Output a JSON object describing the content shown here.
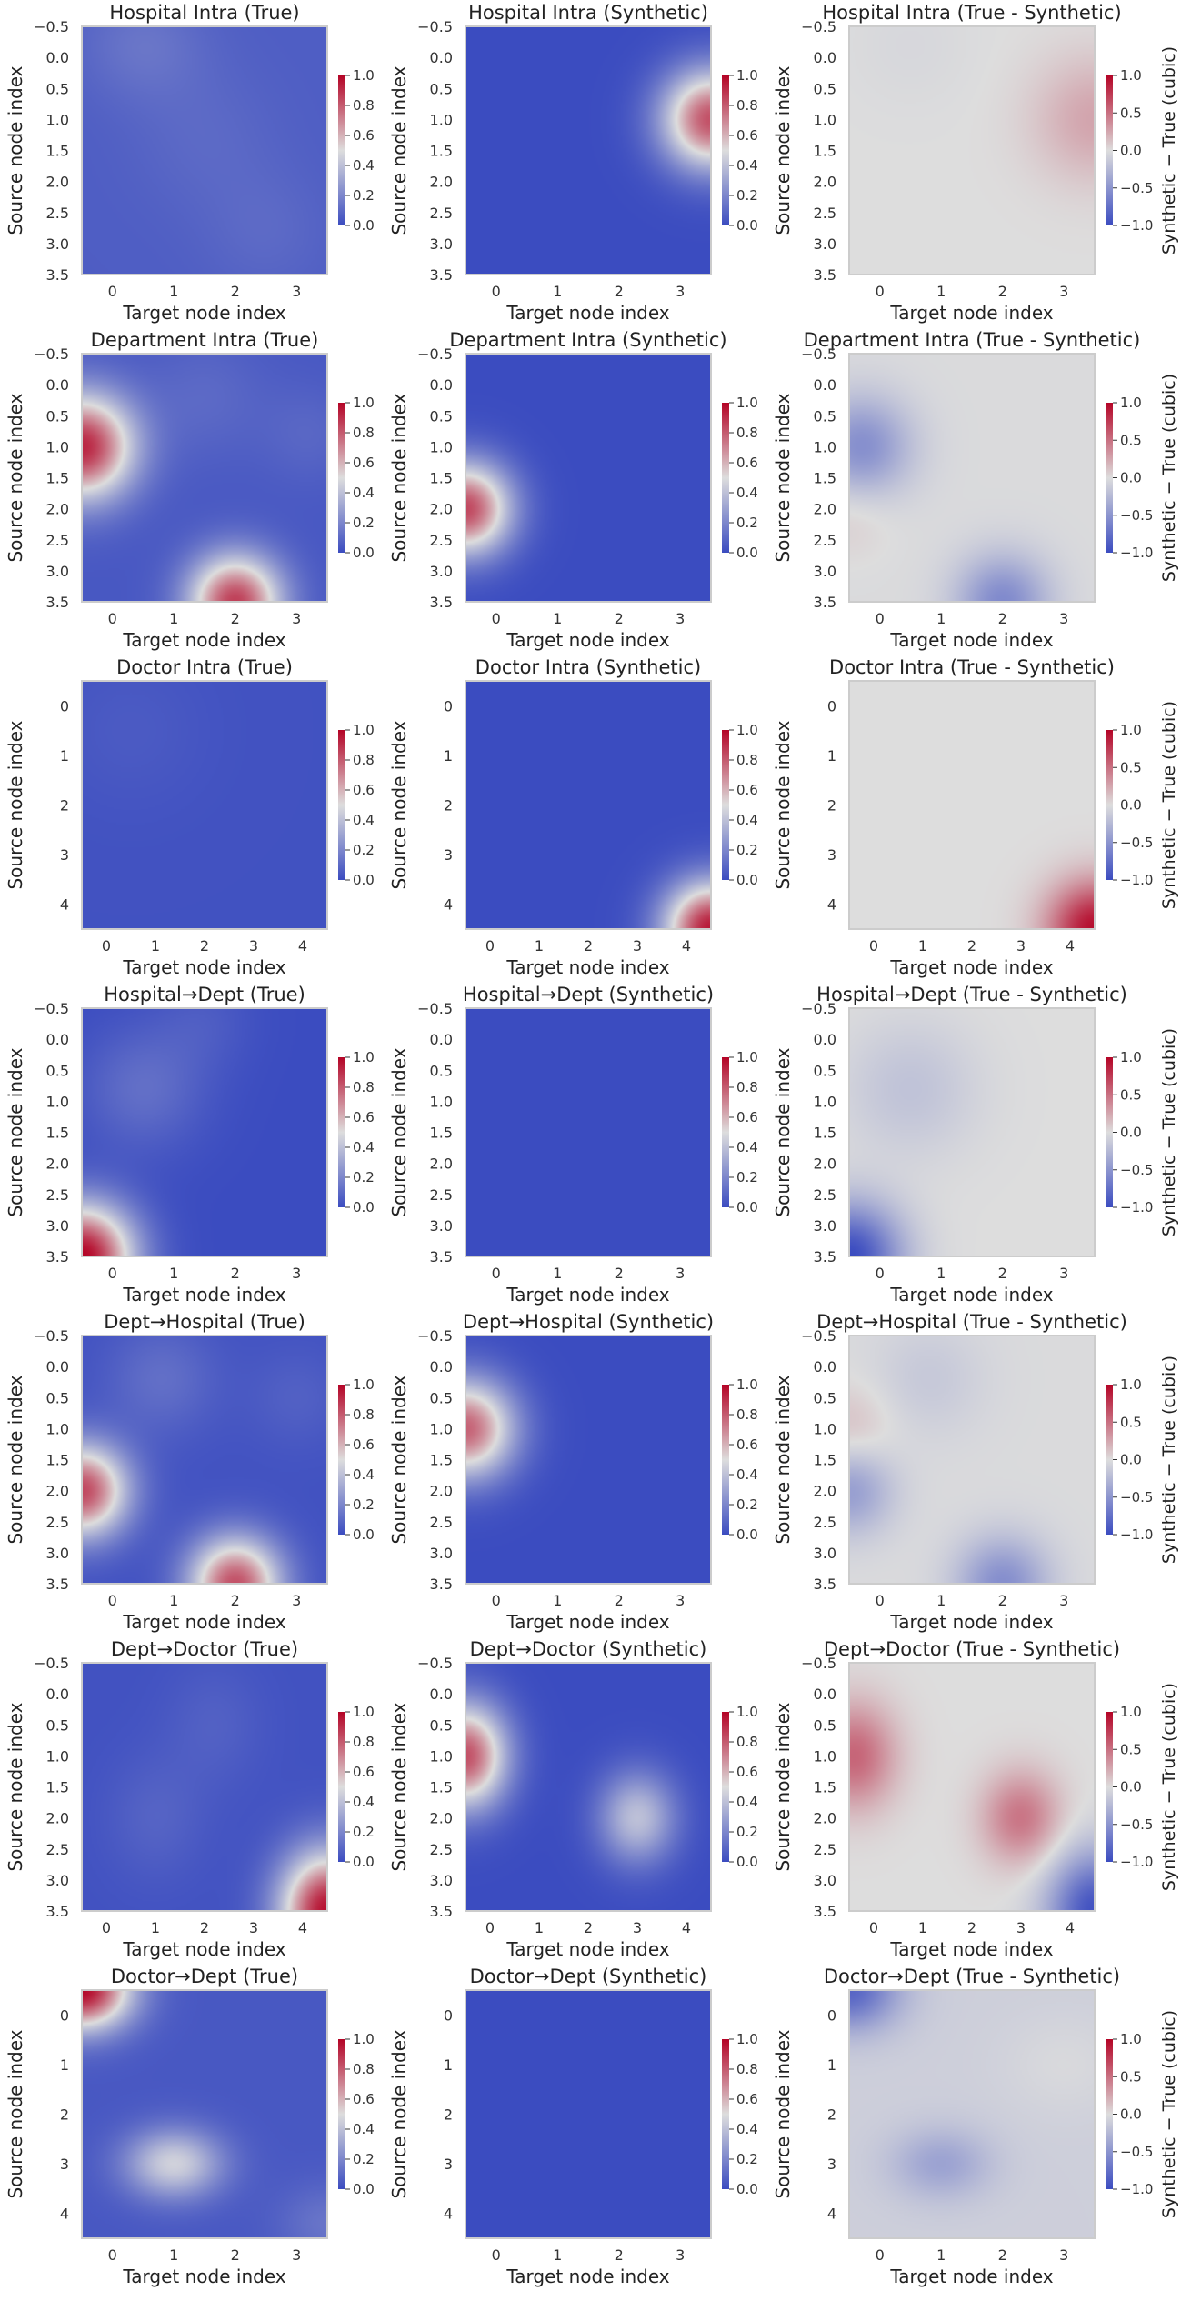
{
  "chart_data": {
    "type": "heatmap",
    "xlabel": "Target node index",
    "ylabel": "Source node index",
    "colorbar_ticks_main": [
      "1.0",
      "0.8",
      "0.6",
      "0.4",
      "0.2",
      "0.0"
    ],
    "colorbar_ticks_diff": [
      "1.0",
      "0.5",
      "0.0",
      "−0.5",
      "−1.0"
    ],
    "colorbar_label_diff": "Synthetic − True (cubic)",
    "colormap": {
      "low": "#3b4cc0",
      "mid": "#dddddd",
      "high": "#b40426"
    },
    "panel_colors": {
      "axis_bg": "#eaeaf2",
      "spine": "#cccccc"
    },
    "rows": [
      {
        "yticks": [
          "−0.5",
          "0.0",
          "0.5",
          "1.0",
          "1.5",
          "2.0",
          "2.5",
          "3.0",
          "3.5"
        ],
        "xticks": [
          "0",
          "1",
          "2",
          "3"
        ],
        "panels": [
          {
            "title": "Hospital Intra (True)",
            "kind": "main",
            "base": 0.06,
            "blobs": [
              [
                0.5,
                -0.2,
                0.08,
                1.0,
                0.9
              ],
              [
                1.5,
                1.3,
                0.04,
                1.2,
                1.2
              ],
              [
                2.5,
                2.8,
                0.04,
                1.0,
                1.0
              ]
            ]
          },
          {
            "title": "Hospital Intra (Synthetic)",
            "kind": "main",
            "base": 0.0,
            "blobs": [
              [
                3.5,
                1.0,
                0.82,
                0.8,
                0.8
              ]
            ]
          },
          {
            "title": "Hospital Intra (True - Synthetic)",
            "kind": "diff",
            "base": 0.0,
            "blobs": [
              [
                3.5,
                1.0,
                0.26,
                1.0,
                1.0
              ],
              [
                0.5,
                -0.2,
                -0.04,
                1.0,
                1.0
              ]
            ]
          }
        ]
      },
      {
        "yticks": [
          "−0.5",
          "0.0",
          "0.5",
          "1.0",
          "1.5",
          "2.0",
          "2.5",
          "3.0",
          "3.5"
        ],
        "xticks": [
          "0",
          "1",
          "2",
          "3"
        ],
        "panels": [
          {
            "title": "Department Intra (True)",
            "kind": "main",
            "base": 0.04,
            "blobs": [
              [
                -0.5,
                1.0,
                0.88,
                0.85,
                0.85
              ],
              [
                2.0,
                3.5,
                0.82,
                0.75,
                0.75
              ],
              [
                1.5,
                0.2,
                0.06,
                1.0,
                1.0
              ],
              [
                3.2,
                0.8,
                0.05,
                0.8,
                0.8
              ]
            ]
          },
          {
            "title": "Department Intra (Synthetic)",
            "kind": "main",
            "base": 0.0,
            "blobs": [
              [
                -0.5,
                2.0,
                0.84,
                0.75,
                0.75
              ]
            ]
          },
          {
            "title": "Department Intra (True - Synthetic)",
            "kind": "diff",
            "base": -0.02,
            "blobs": [
              [
                -0.3,
                1.0,
                -0.52,
                0.8,
                0.8
              ],
              [
                2.0,
                3.5,
                -0.55,
                0.75,
                0.75
              ],
              [
                -0.5,
                2.1,
                0.1,
                0.7,
                0.7
              ]
            ]
          }
        ]
      },
      {
        "yticks": [
          "0",
          "1",
          "2",
          "3",
          "4"
        ],
        "xticks": [
          "0",
          "1",
          "2",
          "3",
          "4"
        ],
        "panels": [
          {
            "title": "Doctor Intra (True)",
            "kind": "main",
            "base": 0.02,
            "blobs": [
              [
                0.5,
                0.5,
                0.03,
                1.5,
                1.5
              ]
            ]
          },
          {
            "title": "Doctor Intra (Synthetic)",
            "kind": "main",
            "base": 0.0,
            "blobs": [
              [
                4.5,
                4.5,
                0.95,
                0.95,
                0.95
              ]
            ]
          },
          {
            "title": "Doctor Intra (True - Synthetic)",
            "kind": "diff",
            "base": 0.0,
            "blobs": [
              [
                4.5,
                4.5,
                0.95,
                0.95,
                0.95
              ]
            ]
          }
        ]
      },
      {
        "yticks": [
          "−0.5",
          "0.0",
          "0.5",
          "1.0",
          "1.5",
          "2.0",
          "2.5",
          "3.0",
          "3.5"
        ],
        "xticks": [
          "0",
          "1",
          "2",
          "3"
        ],
        "panels": [
          {
            "title": "Hospital→Dept (True)",
            "kind": "main",
            "base": 0.0,
            "blobs": [
              [
                -0.5,
                3.5,
                1.0,
                0.85,
                0.85
              ],
              [
                0.5,
                0.8,
                0.12,
                1.0,
                1.0
              ],
              [
                1.5,
                -0.3,
                0.05,
                0.8,
                0.8
              ]
            ]
          },
          {
            "title": "Hospital→Dept (Synthetic)",
            "kind": "main",
            "base": 0.0,
            "blobs": []
          },
          {
            "title": "Hospital→Dept (True - Synthetic)",
            "kind": "diff",
            "base": 0.0,
            "blobs": [
              [
                -0.5,
                3.5,
                -1.0,
                0.85,
                0.85
              ],
              [
                0.5,
                0.8,
                -0.18,
                1.1,
                1.1
              ]
            ]
          }
        ]
      },
      {
        "yticks": [
          "−0.5",
          "0.0",
          "0.5",
          "1.0",
          "1.5",
          "2.0",
          "2.5",
          "3.0",
          "3.5"
        ],
        "xticks": [
          "0",
          "1",
          "2",
          "3"
        ],
        "panels": [
          {
            "title": "Dept→Hospital (True)",
            "kind": "main",
            "base": 0.02,
            "blobs": [
              [
                -0.5,
                2.0,
                0.82,
                0.75,
                0.75
              ],
              [
                2.0,
                3.5,
                0.8,
                0.75,
                0.75
              ],
              [
                0.8,
                0.2,
                0.1,
                0.9,
                0.9
              ],
              [
                3.0,
                0.5,
                0.05,
                0.8,
                0.8
              ]
            ]
          },
          {
            "title": "Dept→Hospital (Synthetic)",
            "kind": "main",
            "base": 0.0,
            "blobs": [
              [
                -0.5,
                1.0,
                0.78,
                0.8,
                0.8
              ]
            ]
          },
          {
            "title": "Dept→Hospital (True - Synthetic)",
            "kind": "diff",
            "base": -0.02,
            "blobs": [
              [
                -0.5,
                1.0,
                0.16,
                0.7,
                0.7
              ],
              [
                -0.5,
                2.0,
                -0.42,
                0.7,
                0.7
              ],
              [
                2.0,
                3.5,
                -0.52,
                0.75,
                0.75
              ],
              [
                0.8,
                0.2,
                -0.12,
                0.9,
                0.9
              ]
            ]
          }
        ]
      },
      {
        "yticks": [
          "−0.5",
          "0.0",
          "0.5",
          "1.0",
          "1.5",
          "2.0",
          "2.5",
          "3.0",
          "3.5"
        ],
        "xticks": [
          "0",
          "1",
          "2",
          "3",
          "4"
        ],
        "panels": [
          {
            "title": "Dept→Doctor (True)",
            "kind": "main",
            "base": 0.02,
            "blobs": [
              [
                4.5,
                3.5,
                0.95,
                0.95,
                0.95
              ],
              [
                1.0,
                2.0,
                0.06,
                1.0,
                1.0
              ],
              [
                2.2,
                0.5,
                0.05,
                1.0,
                1.0
              ]
            ]
          },
          {
            "title": "Dept→Doctor (Synthetic)",
            "kind": "main",
            "base": 0.0,
            "blobs": [
              [
                -0.5,
                1.0,
                0.82,
                0.85,
                0.85
              ],
              [
                3.0,
                2.0,
                0.4,
                0.8,
                0.75
              ]
            ]
          },
          {
            "title": "Dept→Doctor (True - Synthetic)",
            "kind": "diff",
            "base": 0.0,
            "blobs": [
              [
                -0.4,
                1.0,
                0.55,
                0.85,
                0.85
              ],
              [
                3.0,
                2.0,
                0.48,
                0.8,
                0.75
              ],
              [
                4.5,
                3.5,
                -0.95,
                0.95,
                0.95
              ]
            ]
          }
        ]
      },
      {
        "yticks": [
          "0",
          "1",
          "2",
          "3",
          "4"
        ],
        "xticks": [
          "0",
          "1",
          "2",
          "3"
        ],
        "panels": [
          {
            "title": "Doctor→Dept (True)",
            "kind": "main",
            "base": 0.04,
            "blobs": [
              [
                -0.5,
                -0.5,
                0.95,
                0.8,
                0.8
              ],
              [
                1.0,
                3.0,
                0.42,
                0.8,
                0.7
              ],
              [
                3.5,
                4.2,
                0.1,
                0.8,
                0.8
              ]
            ]
          },
          {
            "title": "Doctor→Dept (Synthetic)",
            "kind": "main",
            "base": 0.0,
            "blobs": []
          },
          {
            "title": "Doctor→Dept (True - Synthetic)",
            "kind": "diff",
            "base": -0.1,
            "blobs": [
              [
                -0.5,
                -0.5,
                -0.72,
                0.8,
                0.8
              ],
              [
                1.0,
                3.0,
                -0.3,
                0.8,
                0.7
              ],
              [
                3.0,
                1.0,
                0.07,
                1.0,
                1.0
              ]
            ]
          }
        ]
      }
    ]
  }
}
